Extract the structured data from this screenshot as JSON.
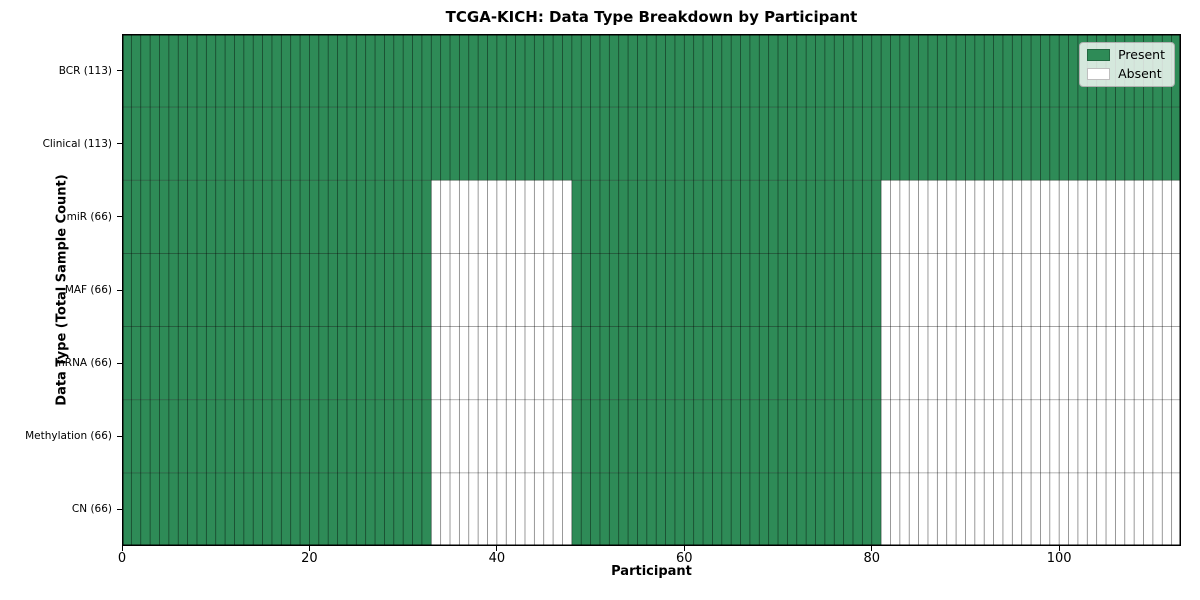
{
  "chart_data": {
    "type": "heatmap",
    "title": "TCGA-KICH: Data Type Breakdown by Participant",
    "xlabel": "Participant",
    "ylabel": "Data Type (Total Sample Count)",
    "x_ticks": [
      0,
      20,
      40,
      60,
      80,
      100
    ],
    "xlim": [
      0,
      113
    ],
    "n_participants": 113,
    "rows": [
      {
        "label": "BCR (113)",
        "data_type": "BCR",
        "total_samples": 113,
        "present_ranges": [
          [
            0,
            113
          ]
        ]
      },
      {
        "label": "Clinical (113)",
        "data_type": "Clinical",
        "total_samples": 113,
        "present_ranges": [
          [
            0,
            113
          ]
        ]
      },
      {
        "label": "miR (66)",
        "data_type": "miR",
        "total_samples": 66,
        "present_ranges": [
          [
            0,
            33
          ],
          [
            48,
            81
          ]
        ]
      },
      {
        "label": "MAF (66)",
        "data_type": "MAF",
        "total_samples": 66,
        "present_ranges": [
          [
            0,
            33
          ],
          [
            48,
            81
          ]
        ]
      },
      {
        "label": "mRNA (66)",
        "data_type": "mRNA",
        "total_samples": 66,
        "present_ranges": [
          [
            0,
            33
          ],
          [
            48,
            81
          ]
        ]
      },
      {
        "label": "Methylation (66)",
        "data_type": "Methylation",
        "total_samples": 66,
        "present_ranges": [
          [
            0,
            33
          ],
          [
            48,
            81
          ]
        ]
      },
      {
        "label": "CN (66)",
        "data_type": "CN",
        "total_samples": 66,
        "present_ranges": [
          [
            0,
            33
          ],
          [
            48,
            81
          ]
        ]
      }
    ],
    "legend": [
      {
        "label": "Present",
        "color": "#2e8b57"
      },
      {
        "label": "Absent",
        "color": "#ffffff"
      }
    ],
    "colors": {
      "present": "#2e8b57",
      "absent": "#ffffff",
      "cell_border": "#000000",
      "axis": "#000000"
    },
    "legend_position": "upper right",
    "grid": "cell-borders"
  }
}
